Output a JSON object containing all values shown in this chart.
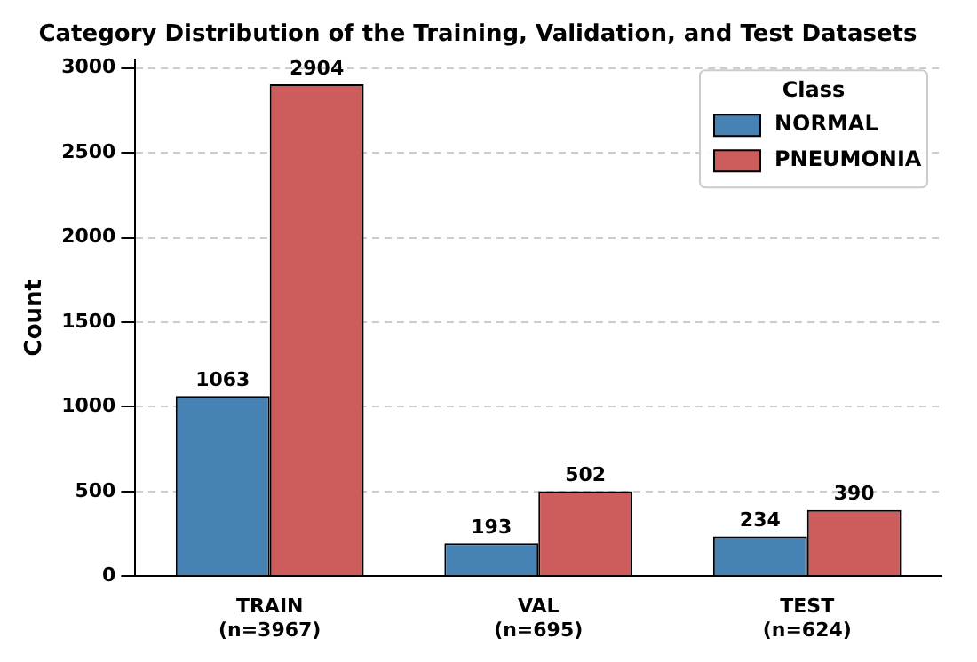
{
  "chart_data": {
    "type": "bar",
    "title": "Category Distribution of the Training, Validation, and Test Datasets",
    "ylabel": "Count",
    "legend_title": "Class",
    "categories": [
      "TRAIN\n(n=3967)",
      "VAL\n(n=695)",
      "TEST\n(n=624)"
    ],
    "series": [
      {
        "name": "NORMAL",
        "color": "#4682b4",
        "values": [
          1063,
          193,
          234
        ]
      },
      {
        "name": "PNEUMONIA",
        "color": "#cd5c5c",
        "values": [
          2904,
          502,
          390
        ]
      }
    ],
    "ylim": [
      0,
      3050
    ],
    "yticks": [
      0,
      500,
      1000,
      1500,
      2000,
      2500,
      3000
    ],
    "grid": "y",
    "legend": "top right",
    "data_labels": true
  }
}
